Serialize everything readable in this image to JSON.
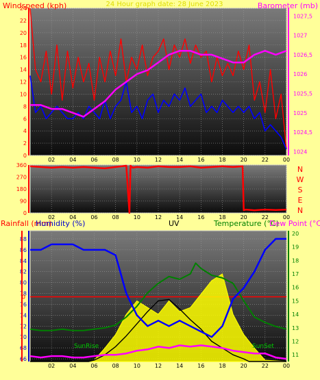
{
  "chart_data": [
    {
      "type": "line",
      "panel": "wind and barometer",
      "title": "24 Hour graph date: 28 June 2023",
      "ylabel": "Windspeed (kph)",
      "y2label": "Barometer (mb)",
      "x_ticks": [
        "02",
        "04",
        "06",
        "08",
        "10",
        "12",
        "14",
        "16",
        "18",
        "20",
        "22",
        "00"
      ],
      "y_ticks": [
        "0",
        "2",
        "4",
        "6",
        "8",
        "10",
        "12",
        "14",
        "16",
        "18",
        "20",
        "22",
        "24"
      ],
      "y2_ticks": [
        "1024",
        "1024,5",
        "1025",
        "1025,5",
        "1026",
        "1026,5",
        "1027",
        "1027,5"
      ],
      "ylim": [
        0,
        24
      ],
      "y2lim": [
        1023.9,
        1027.7
      ],
      "grid": true,
      "series": [
        {
          "name": "Windspeed (kph)",
          "color": "#ff0000",
          "axis": "left",
          "x": [
            0,
            0.5,
            1,
            1.5,
            2,
            2.5,
            3,
            3.5,
            4,
            4.5,
            5,
            5.5,
            6,
            6.5,
            7,
            7.5,
            8,
            8.5,
            9,
            9.5,
            10,
            10.5,
            11,
            11.5,
            12,
            12.5,
            13,
            13.5,
            14,
            14.5,
            15,
            15.5,
            16,
            16.5,
            17,
            17.5,
            18,
            18.5,
            19,
            19.5,
            20,
            20.5,
            21,
            21.5,
            22,
            22.5,
            23,
            23.5,
            24
          ],
          "values": [
            24,
            14,
            12,
            17,
            10,
            18,
            9,
            17,
            11,
            16,
            12,
            15,
            9,
            16,
            12,
            17,
            13,
            19,
            12,
            16,
            14,
            18,
            13,
            16,
            17,
            19,
            14,
            18,
            16,
            19,
            15,
            18,
            16,
            17,
            12,
            16,
            13,
            15,
            13,
            17,
            14,
            18,
            9,
            12,
            7,
            14,
            6,
            10,
            1
          ]
        },
        {
          "name": "Gust (kph)",
          "color": "#0000ff",
          "axis": "left",
          "x": [
            0,
            0.5,
            1,
            1.5,
            2,
            2.5,
            3,
            3.5,
            4,
            4.5,
            5,
            5.5,
            6,
            6.5,
            7,
            7.5,
            8,
            8.5,
            9,
            9.5,
            10,
            10.5,
            11,
            11.5,
            12,
            12.5,
            13,
            13.5,
            14,
            14.5,
            15,
            15.5,
            16,
            16.5,
            17,
            17.5,
            18,
            18.5,
            19,
            19.5,
            20,
            20.5,
            21,
            21.5,
            22,
            22.5,
            23,
            23.5,
            24
          ],
          "values": [
            13,
            7,
            8,
            6,
            7,
            8,
            7,
            6,
            6,
            7,
            6,
            8,
            7,
            6,
            9,
            6,
            8,
            9,
            12,
            7,
            8,
            6,
            9,
            10,
            7,
            9,
            8,
            10,
            9,
            11,
            8,
            9,
            10,
            7,
            8,
            7,
            9,
            8,
            7,
            8,
            7,
            8,
            6,
            7,
            4,
            5,
            4,
            3,
            1
          ]
        },
        {
          "name": "Barometer (mb)",
          "color": "#ff00ff",
          "axis": "right",
          "x": [
            0,
            1,
            2,
            3,
            4,
            5,
            6,
            7,
            8,
            9,
            10,
            11,
            12,
            13,
            14,
            15,
            16,
            17,
            18,
            19,
            20,
            21,
            22,
            23,
            24
          ],
          "values": [
            1025.2,
            1025.2,
            1025.1,
            1025.1,
            1025.0,
            1024.9,
            1025.1,
            1025.3,
            1025.6,
            1025.8,
            1026.0,
            1026.1,
            1026.3,
            1026.5,
            1026.6,
            1026.6,
            1026.5,
            1026.5,
            1026.4,
            1026.3,
            1026.3,
            1026.5,
            1026.6,
            1026.5,
            1026.6
          ]
        }
      ]
    },
    {
      "type": "line",
      "panel": "wind direction",
      "x_ticks": [
        "02",
        "04",
        "06",
        "08",
        "10",
        "12",
        "14",
        "16",
        "18",
        "20",
        "22",
        "00"
      ],
      "y_ticks": [
        "0",
        "90",
        "180",
        "270",
        "360"
      ],
      "y2_ticks": [
        "N",
        "W",
        "S",
        "E",
        "N"
      ],
      "ylim": [
        0,
        360
      ],
      "grid": true,
      "series": [
        {
          "name": "Wind direction",
          "color": "#ff0000",
          "x": [
            0,
            1,
            2,
            3,
            4,
            5,
            6,
            7,
            8,
            9,
            9.3,
            9.4,
            9.6,
            10,
            11,
            12,
            13,
            14,
            15,
            16,
            17,
            18,
            19,
            19.9,
            20,
            20.2,
            21,
            22,
            23,
            24
          ],
          "values": [
            350,
            345,
            340,
            345,
            340,
            345,
            340,
            335,
            345,
            355,
            0,
            355,
            340,
            345,
            340,
            350,
            345,
            345,
            350,
            340,
            345,
            350,
            345,
            350,
            20,
            25,
            20,
            25,
            22,
            25
          ]
        }
      ]
    },
    {
      "type": "line",
      "panel": "rain humidity uv temperature",
      "ylabels": [
        "Rainfall (mm)",
        "Humidity (%)",
        "UV"
      ],
      "y2labels": [
        "Temperature (°C)",
        "Dew Point (°C)"
      ],
      "x_ticks": [
        "02",
        "04",
        "06",
        "08",
        "10",
        "12",
        "14",
        "16",
        "18",
        "20",
        "22",
        "00"
      ],
      "humidity_ticks": [
        "66",
        "68",
        "70",
        "72",
        "74",
        "76",
        "78",
        "80",
        "82",
        "84",
        "86",
        "88"
      ],
      "temp_ticks": [
        "11",
        "12",
        "13",
        "14",
        "15",
        "16",
        "17",
        "18",
        "19",
        "20"
      ],
      "rain_tick": "0",
      "annotations": [
        "SunRise",
        "SunSet"
      ],
      "humidity_lim": [
        65.5,
        89.5
      ],
      "temp_lim": [
        10.5,
        20.2
      ],
      "grid": true,
      "series": [
        {
          "name": "Humidity (%)",
          "color": "#0000ff",
          "axis": "left",
          "x": [
            0,
            1,
            2,
            3,
            4,
            5,
            6,
            7,
            8,
            9,
            10,
            11,
            12,
            13,
            14,
            15,
            16,
            17,
            18,
            19,
            20,
            21,
            22,
            23,
            24
          ],
          "values": [
            86,
            86,
            87,
            87,
            87,
            86,
            86,
            86,
            85,
            78,
            74,
            72,
            73,
            72,
            73,
            72,
            71,
            70,
            72,
            77,
            79,
            82,
            86,
            88,
            88
          ]
        },
        {
          "name": "Temperature (°C)",
          "color": "#008000",
          "axis": "right",
          "x": [
            0,
            1,
            2,
            3,
            4,
            5,
            6,
            7,
            8,
            9,
            10,
            11,
            12,
            13,
            14,
            15,
            15.5,
            16,
            17,
            18,
            19,
            20,
            21,
            22,
            23,
            24
          ],
          "values": [
            12.9,
            12.8,
            12.8,
            12.9,
            12.8,
            12.8,
            12.9,
            13.0,
            13.2,
            13.8,
            14.6,
            15.6,
            16.3,
            16.8,
            16.6,
            17.0,
            17.8,
            17.4,
            16.9,
            16.7,
            16.3,
            15.0,
            13.8,
            13.4,
            13.1,
            12.9
          ]
        },
        {
          "name": "Dew Point (°C)",
          "color": "#ff00ff",
          "axis": "right",
          "x": [
            0,
            1,
            2,
            3,
            4,
            5,
            6,
            7,
            8,
            9,
            10,
            11,
            12,
            13,
            14,
            15,
            16,
            17,
            18,
            19,
            20,
            21,
            22,
            23,
            24
          ],
          "values": [
            10.9,
            10.8,
            10.9,
            10.9,
            10.8,
            10.8,
            10.9,
            11.0,
            11.0,
            11.1,
            11.3,
            11.4,
            11.6,
            11.5,
            11.7,
            11.6,
            11.7,
            11.6,
            11.5,
            11.3,
            11.2,
            11.1,
            11.1,
            10.8,
            10.7
          ]
        },
        {
          "name": "Solar",
          "color": "#000000",
          "axis": "right",
          "x": [
            0,
            5.5,
            6,
            7,
            8,
            9,
            10,
            11,
            12,
            13,
            14,
            15,
            16,
            17,
            18,
            19,
            20,
            20.5,
            21,
            22,
            24
          ],
          "values": [
            10.5,
            10.5,
            10.6,
            11.0,
            11.6,
            12.4,
            13.3,
            14.2,
            15.0,
            15.1,
            14.4,
            13.6,
            12.9,
            12.0,
            11.5,
            11.0,
            10.7,
            10.5,
            10.5,
            10.5,
            10.5
          ]
        },
        {
          "name": "UV",
          "color": "#ffff00",
          "axis": "right",
          "x": [
            0,
            5.5,
            6,
            7,
            8,
            9,
            10,
            11,
            12,
            13,
            14,
            15,
            16,
            17,
            18,
            19,
            20,
            21,
            22,
            24
          ],
          "values": [
            10.5,
            10.5,
            10.6,
            11.5,
            12.5,
            14.0,
            15.0,
            14.5,
            14.0,
            15.0,
            14.2,
            14.5,
            15.5,
            16.5,
            17.0,
            14.0,
            12.5,
            11.5,
            10.6,
            10.5
          ]
        }
      ],
      "rain_level": 0
    }
  ]
}
